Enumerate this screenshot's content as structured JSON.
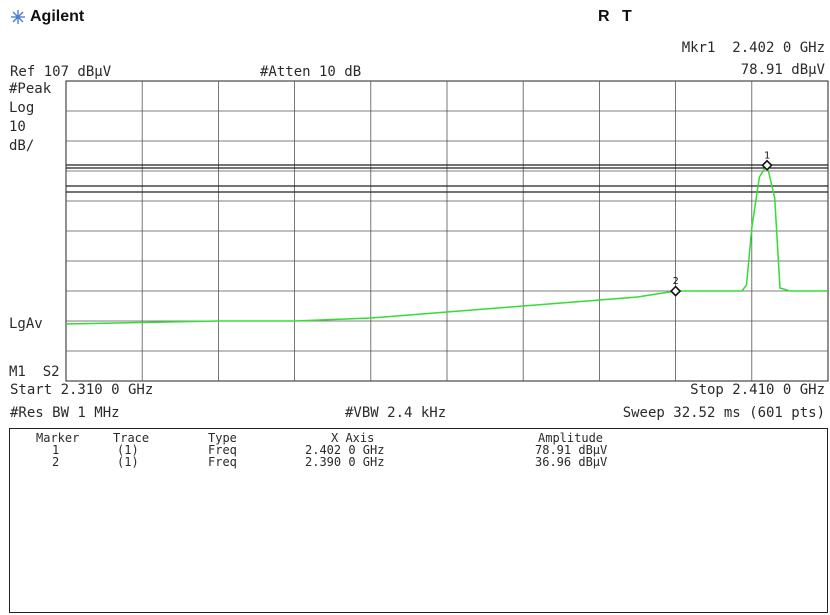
{
  "brand": {
    "name": "Agilent",
    "logo_icon": "starburst-icon"
  },
  "status": {
    "r": "R",
    "t": "T"
  },
  "header": {
    "marker_readout_freq": "Mkr1  2.402 0 GHz",
    "marker_readout_amp": "78.91 dBμV",
    "ref_level": "Ref 107 dBμV",
    "atten": "#Atten 10 dB"
  },
  "left_labels": {
    "detector": "#Peak",
    "scale_type": "Log",
    "scale_value": "10",
    "scale_unit": "dB/",
    "averaging": "LgAv",
    "marker_state": "M1  S2"
  },
  "footer": {
    "start": "Start 2.310 0 GHz",
    "stop": "Stop 2.410 0 GHz",
    "res_bw": "#Res BW 1 MHz",
    "vbw": "#VBW 2.4 kHz",
    "sweep": "Sweep 32.52 ms (601 pts)"
  },
  "marker_table": {
    "headers": [
      "Marker",
      "Trace",
      "Type",
      "X Axis",
      "Amplitude"
    ],
    "rows": [
      [
        "1",
        "(1)",
        "Freq",
        "2.402 0 GHz",
        "78.91 dBμV"
      ],
      [
        "2",
        "(1)",
        "Freq",
        "2.390 0 GHz",
        "36.96 dBμV"
      ]
    ]
  },
  "chart_data": {
    "type": "line",
    "x_unit": "GHz",
    "y_unit": "dBμV",
    "xlim": [
      2.31,
      2.41
    ],
    "ylim": [
      7,
      107
    ],
    "grid": true,
    "limit_lines_dbuv": [
      79,
      78,
      72,
      70
    ],
    "series": [
      {
        "color": "#33dd33",
        "x": [
          2.31,
          2.32,
          2.33,
          2.34,
          2.35,
          2.36,
          2.37,
          2.38,
          2.385,
          2.39,
          2.3987,
          2.3993,
          2.4,
          2.401,
          2.402,
          2.403,
          2.4037,
          2.405,
          2.41
        ],
        "y": [
          26,
          26.5,
          27,
          27,
          28,
          30,
          32,
          34,
          35,
          37,
          37,
          39,
          58,
          75,
          79,
          68,
          38,
          37,
          37
        ]
      }
    ],
    "markers": [
      {
        "label": "1",
        "x": 2.402,
        "y": 78.91
      },
      {
        "label": "2",
        "x": 2.39,
        "y": 36.96
      }
    ]
  }
}
